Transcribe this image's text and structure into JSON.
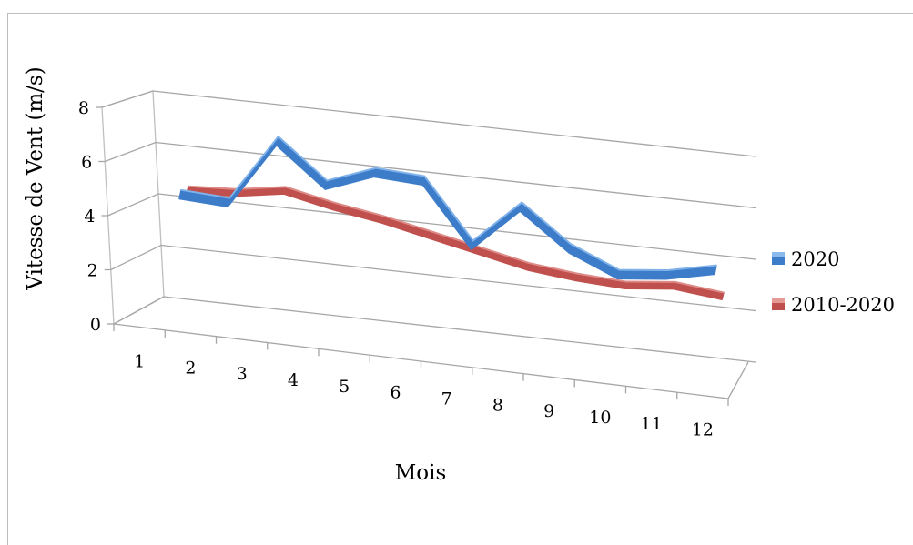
{
  "chart_data": {
    "type": "line",
    "title": "",
    "xlabel": "Mois",
    "ylabel": "Vitesse de Vent (m/s)",
    "categories": [
      "1",
      "2",
      "3",
      "4",
      "5",
      "6",
      "7",
      "8",
      "9",
      "10",
      "11",
      "12"
    ],
    "y_ticks": [
      "0",
      "2",
      "4",
      "6",
      "8"
    ],
    "ylim": [
      0,
      8
    ],
    "grid": true,
    "legend_position": "right",
    "series": [
      {
        "name": "2020",
        "color": "#3d7cc9",
        "values": [
          4.4,
          4.3,
          6.9,
          5.4,
          6.1,
          6.0,
          3.7,
          5.4,
          4.0,
          3.2,
          3.4,
          3.8
        ]
      },
      {
        "name": "2010-2020",
        "color": "#c0504d",
        "values": [
          4.4,
          4.5,
          4.8,
          4.4,
          4.1,
          3.7,
          3.3,
          2.9,
          2.7,
          2.6,
          2.8,
          2.6
        ]
      }
    ]
  }
}
